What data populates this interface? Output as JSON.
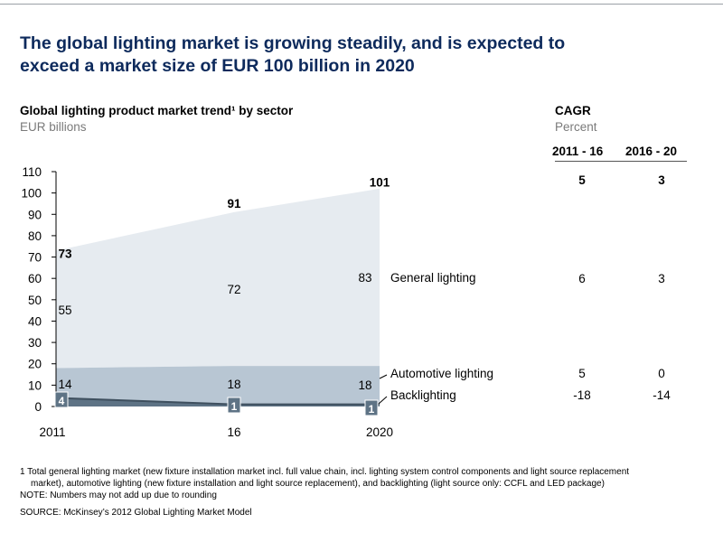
{
  "header": {
    "title_line1": "The global lighting market is growing steadily, and is expected to",
    "title_line2": "exceed a market size of EUR 100 billion in 2020"
  },
  "chart_data": {
    "type": "area",
    "title": "Global lighting product market trend¹ by sector",
    "ylabel": "EUR billions",
    "x": [
      "2011",
      "16",
      "2020"
    ],
    "yticks": [
      "0",
      "10",
      "20",
      "30",
      "40",
      "50",
      "60",
      "70",
      "80",
      "90",
      "100",
      "110"
    ],
    "ylim": [
      0,
      110
    ],
    "grid": false,
    "series": [
      {
        "name": "Backlighting",
        "values": [
          4,
          1,
          1
        ],
        "color": "#5e7385"
      },
      {
        "name": "Automotive lighting",
        "values": [
          14,
          18,
          18
        ],
        "color": "#b8c6d3"
      },
      {
        "name": "General lighting",
        "values": [
          55,
          72,
          83
        ],
        "color": "#e6ebf0"
      }
    ],
    "totals": [
      73,
      91,
      101
    ],
    "labels": {
      "backlighting": [
        "4",
        "1",
        "1"
      ],
      "automotive": [
        "14",
        "18",
        "18"
      ],
      "general": [
        "55",
        "72",
        "83"
      ],
      "totals": [
        "73",
        "91",
        "101"
      ]
    }
  },
  "cagr": {
    "title": "CAGR",
    "unit": "Percent",
    "col1": "2011 - 16",
    "col2": "2016 - 20",
    "total": [
      "5",
      "3"
    ],
    "general": [
      "6",
      "3"
    ],
    "automotive": [
      "5",
      "0"
    ],
    "backlighting": [
      "-18",
      "-14"
    ]
  },
  "legend": {
    "general": "General lighting",
    "automotive": "Automotive lighting",
    "backlighting": "Backlighting"
  },
  "footnotes": {
    "note1_line1": "1 Total general lighting market (new fixture installation market incl. full value chain, incl. lighting system control components and light source replacement",
    "note1_line2": "market), automotive lighting (new fixture installation and light source replacement), and backlighting (light source only: CCFL and LED package)",
    "note2": "NOTE: Numbers may not add up due to rounding",
    "source": "SOURCE: McKinsey’s 2012 Global Lighting Market Model"
  }
}
